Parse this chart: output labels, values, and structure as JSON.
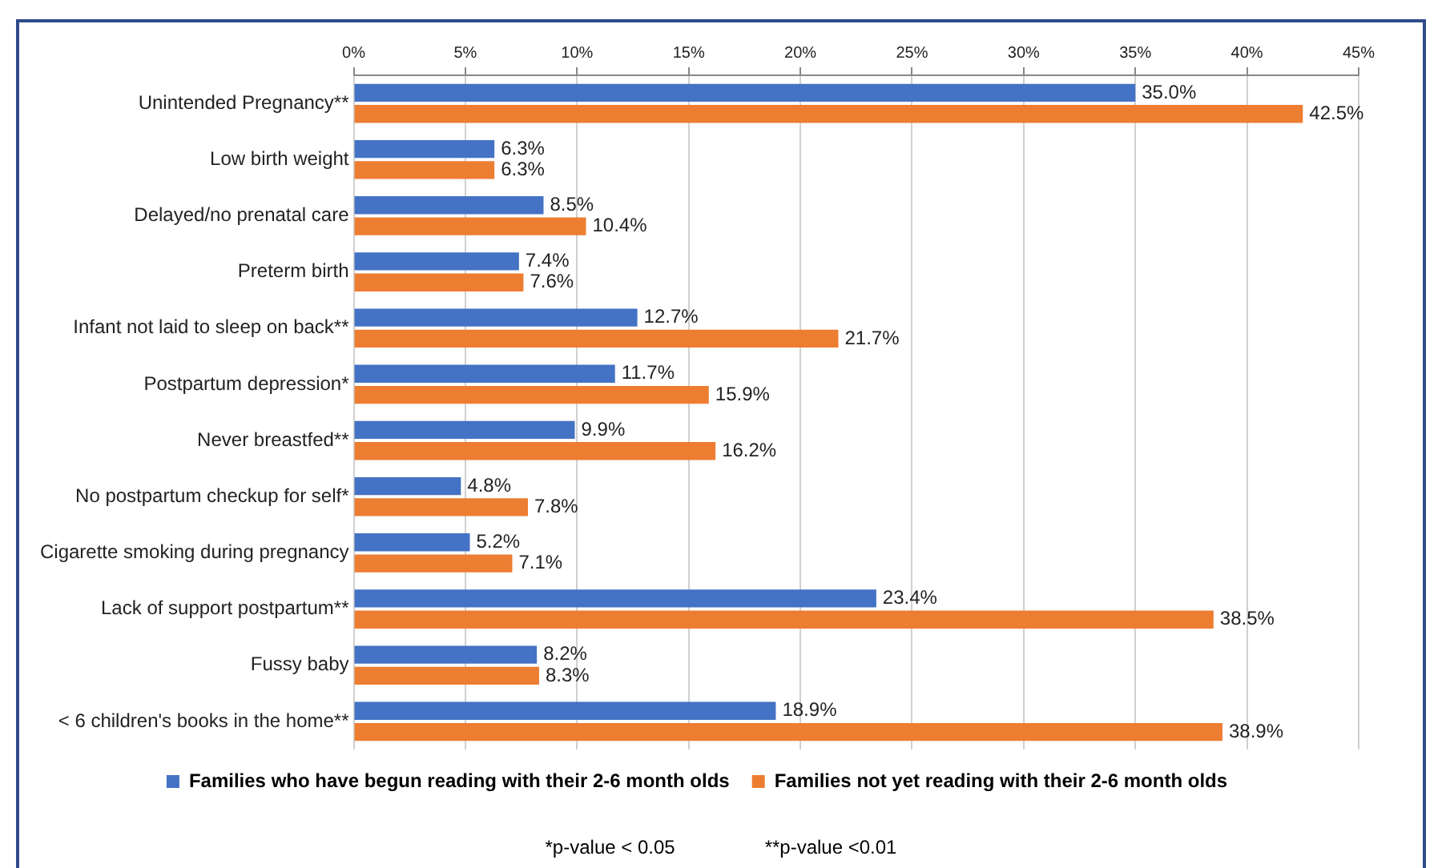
{
  "chart_data": {
    "type": "bar",
    "orientation": "horizontal",
    "categories": [
      "Unintended Pregnancy**",
      "Low birth weight",
      "Delayed/no prenatal care",
      "Preterm birth",
      "Infant not laid to sleep on back**",
      "Postpartum depression*",
      "Never breastfed**",
      "No postpartum checkup for self*",
      "Cigarette smoking during pregnancy",
      "Lack of support postpartum**",
      "Fussy baby",
      "< 6 children's books in the home**"
    ],
    "series": [
      {
        "name": "Families who have begun reading with their 2-6 month olds",
        "color": "#4472c4",
        "values": [
          35.0,
          6.3,
          8.5,
          7.4,
          12.7,
          11.7,
          9.9,
          4.8,
          5.2,
          23.4,
          8.2,
          18.9
        ],
        "value_labels": [
          "35.0%",
          "6.3%",
          "8.5%",
          "7.4%",
          "12.7%",
          "11.7%",
          "9.9%",
          "4.8%",
          "5.2%",
          "23.4%",
          "8.2%",
          "18.9%"
        ]
      },
      {
        "name": "Families not yet reading with their 2-6 month olds",
        "color": "#ed7d31",
        "values": [
          42.5,
          6.3,
          10.4,
          7.6,
          21.7,
          15.9,
          16.2,
          7.8,
          7.1,
          38.5,
          8.3,
          38.9
        ],
        "value_labels": [
          "42.5%",
          "6.3%",
          "10.4%",
          "7.6%",
          "21.7%",
          "15.9%",
          "16.2%",
          "7.8%",
          "7.1%",
          "38.5%",
          "8.3%",
          "38.9%"
        ]
      }
    ],
    "xlim": [
      0,
      45
    ],
    "xticks": [
      {
        "value": 0,
        "label": "0%"
      },
      {
        "value": 5,
        "label": "5%"
      },
      {
        "value": 10,
        "label": "10%"
      },
      {
        "value": 15,
        "label": "15%"
      },
      {
        "value": 20,
        "label": "20%"
      },
      {
        "value": 25,
        "label": "25%"
      },
      {
        "value": 30,
        "label": "30%"
      },
      {
        "value": 35,
        "label": "35%"
      },
      {
        "value": 40,
        "label": "40%"
      },
      {
        "value": 45,
        "label": "45%"
      }
    ],
    "grid": "x",
    "legend": "bottom",
    "annotations": [
      "*p-value < 0.05",
      "**p-value <0.01"
    ]
  }
}
